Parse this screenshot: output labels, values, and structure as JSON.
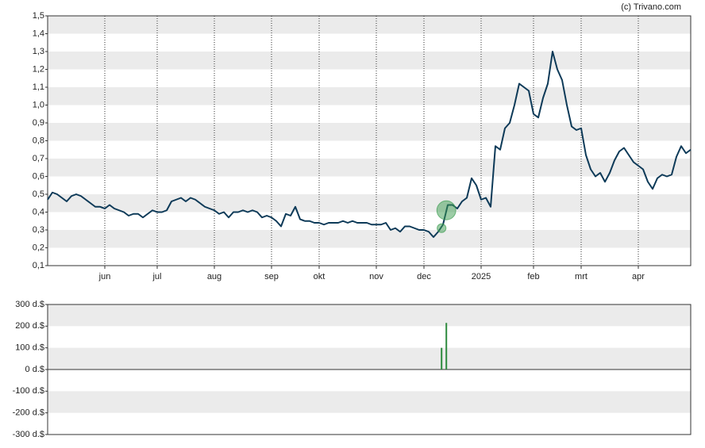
{
  "chart_data": [
    {
      "type": "line",
      "source": "(c) Trivano.com",
      "color": "#0d3a58",
      "values": [
        0.47,
        0.51,
        0.5,
        0.48,
        0.46,
        0.49,
        0.5,
        0.49,
        0.47,
        0.45,
        0.43,
        0.43,
        0.42,
        0.44,
        0.42,
        0.41,
        0.4,
        0.38,
        0.39,
        0.39,
        0.37,
        0.39,
        0.41,
        0.4,
        0.4,
        0.41,
        0.46,
        0.47,
        0.48,
        0.46,
        0.48,
        0.47,
        0.45,
        0.43,
        0.42,
        0.41,
        0.39,
        0.4,
        0.37,
        0.4,
        0.4,
        0.41,
        0.4,
        0.41,
        0.4,
        0.37,
        0.38,
        0.37,
        0.35,
        0.32,
        0.39,
        0.38,
        0.43,
        0.36,
        0.35,
        0.35,
        0.34,
        0.34,
        0.33,
        0.34,
        0.34,
        0.34,
        0.35,
        0.34,
        0.35,
        0.34,
        0.34,
        0.34,
        0.33,
        0.33,
        0.33,
        0.34,
        0.3,
        0.31,
        0.29,
        0.32,
        0.32,
        0.31,
        0.3,
        0.3,
        0.29,
        0.26,
        0.29,
        0.33,
        0.44,
        0.44,
        0.42,
        0.46,
        0.48,
        0.59,
        0.55,
        0.47,
        0.48,
        0.43,
        0.77,
        0.75,
        0.87,
        0.9,
        1.0,
        1.12,
        1.1,
        1.08,
        0.95,
        0.93,
        1.04,
        1.12,
        1.3,
        1.2,
        1.14,
        1.0,
        0.88,
        0.86,
        0.87,
        0.72,
        0.64,
        0.6,
        0.62,
        0.57,
        0.62,
        0.69,
        0.74,
        0.76,
        0.72,
        0.68,
        0.66,
        0.64,
        0.57,
        0.53,
        0.59,
        0.61,
        0.6,
        0.61,
        0.71,
        0.77,
        0.73,
        0.75
      ],
      "markers": {
        "color": "#3c9c50",
        "x": [
          82.7,
          83.7
        ],
        "values": [
          0.31,
          0.41
        ]
      },
      "xlim": [
        0,
        135
      ],
      "xticks": [
        {
          "value": 12,
          "label": "jun"
        },
        {
          "value": 23,
          "label": "jul"
        },
        {
          "value": 35,
          "label": "aug"
        },
        {
          "value": 47,
          "label": "sep"
        },
        {
          "value": 57,
          "label": "okt"
        },
        {
          "value": 69,
          "label": "nov"
        },
        {
          "value": 79,
          "label": "dec"
        },
        {
          "value": 91,
          "label": "2025"
        },
        {
          "value": 102,
          "label": "feb"
        },
        {
          "value": 112,
          "label": "mrt"
        },
        {
          "value": 124,
          "label": "apr"
        }
      ],
      "ylim": [
        0.1,
        1.5
      ],
      "yticks": [
        {
          "value": 0.1,
          "label": "0,1"
        },
        {
          "value": 0.2,
          "label": "0,2"
        },
        {
          "value": 0.3,
          "label": "0,3"
        },
        {
          "value": 0.4,
          "label": "0,4"
        },
        {
          "value": 0.5,
          "label": "0,5"
        },
        {
          "value": 0.6,
          "label": "0,6"
        },
        {
          "value": 0.7,
          "label": "0,7"
        },
        {
          "value": 0.8,
          "label": "0,8"
        },
        {
          "value": 0.9,
          "label": "0,9"
        },
        {
          "value": 1.0,
          "label": "1,0"
        },
        {
          "value": 1.1,
          "label": "1,1"
        },
        {
          "value": 1.2,
          "label": "1,2"
        },
        {
          "value": 1.3,
          "label": "1,3"
        },
        {
          "value": 1.4,
          "label": "1,4"
        },
        {
          "value": 1.5,
          "label": "1,5"
        }
      ],
      "grid": true
    },
    {
      "type": "bar",
      "color": "#2e8b3e",
      "x": [
        82.7,
        83.7
      ],
      "values": [
        100,
        215
      ],
      "xlim": [
        0,
        135
      ],
      "ylim": [
        -300,
        300
      ],
      "yticks": [
        {
          "value": -300,
          "label": "-300 d.$"
        },
        {
          "value": -200,
          "label": "-200 d.$"
        },
        {
          "value": -100,
          "label": "-100 d.$"
        },
        {
          "value": 0,
          "label": "0 d.$"
        },
        {
          "value": 100,
          "label": "100 d.$"
        },
        {
          "value": 200,
          "label": "200 d.$"
        },
        {
          "value": 300,
          "label": "300 d.$"
        }
      ]
    }
  ]
}
